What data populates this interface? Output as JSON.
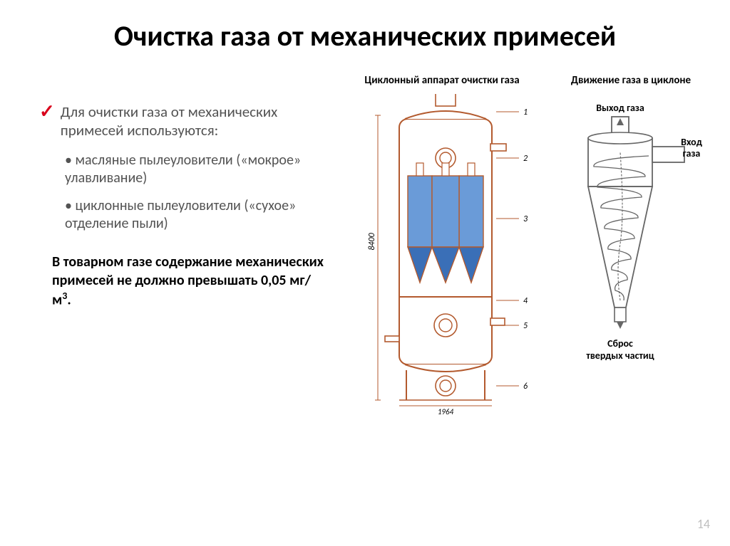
{
  "title": "Очистка газа от механических примесей",
  "title_fontsize": 40,
  "intro": "Для очистки газа от механических примесей используются:",
  "intro_fontsize": 21,
  "bullets": [
    "масляные пылеуловители («мокрое» улавливание)",
    "циклонные пылеуловители («сухое» отделение пыли)"
  ],
  "bullets_fontsize": 20,
  "note_html": "В товарном газе содержание механических примесей не должно превышать 0,05 мг/м<sup>3</sup>.",
  "note_fontsize": 20,
  "page_number": "14",
  "cyclone_apparatus": {
    "caption": "Циклонный аппарат очистки газа",
    "caption_fontsize": 15,
    "stroke_color": "#b35a2e",
    "fill_blue": "#3a6fb7",
    "fill_blue_light": "#6a9bd8",
    "bg": "#ffffff",
    "height_label": "8400",
    "width_label": "1964",
    "part_labels": [
      "1",
      "2",
      "3",
      "4",
      "5",
      "6"
    ]
  },
  "cyclone_motion": {
    "caption": "Движение газа в циклоне",
    "caption_fontsize": 15,
    "label_out": "Выход газа",
    "label_in": "Вход газа",
    "label_drop": "Сброс твердых частиц",
    "label_fontsize": 14,
    "stroke_color": "#666666"
  }
}
